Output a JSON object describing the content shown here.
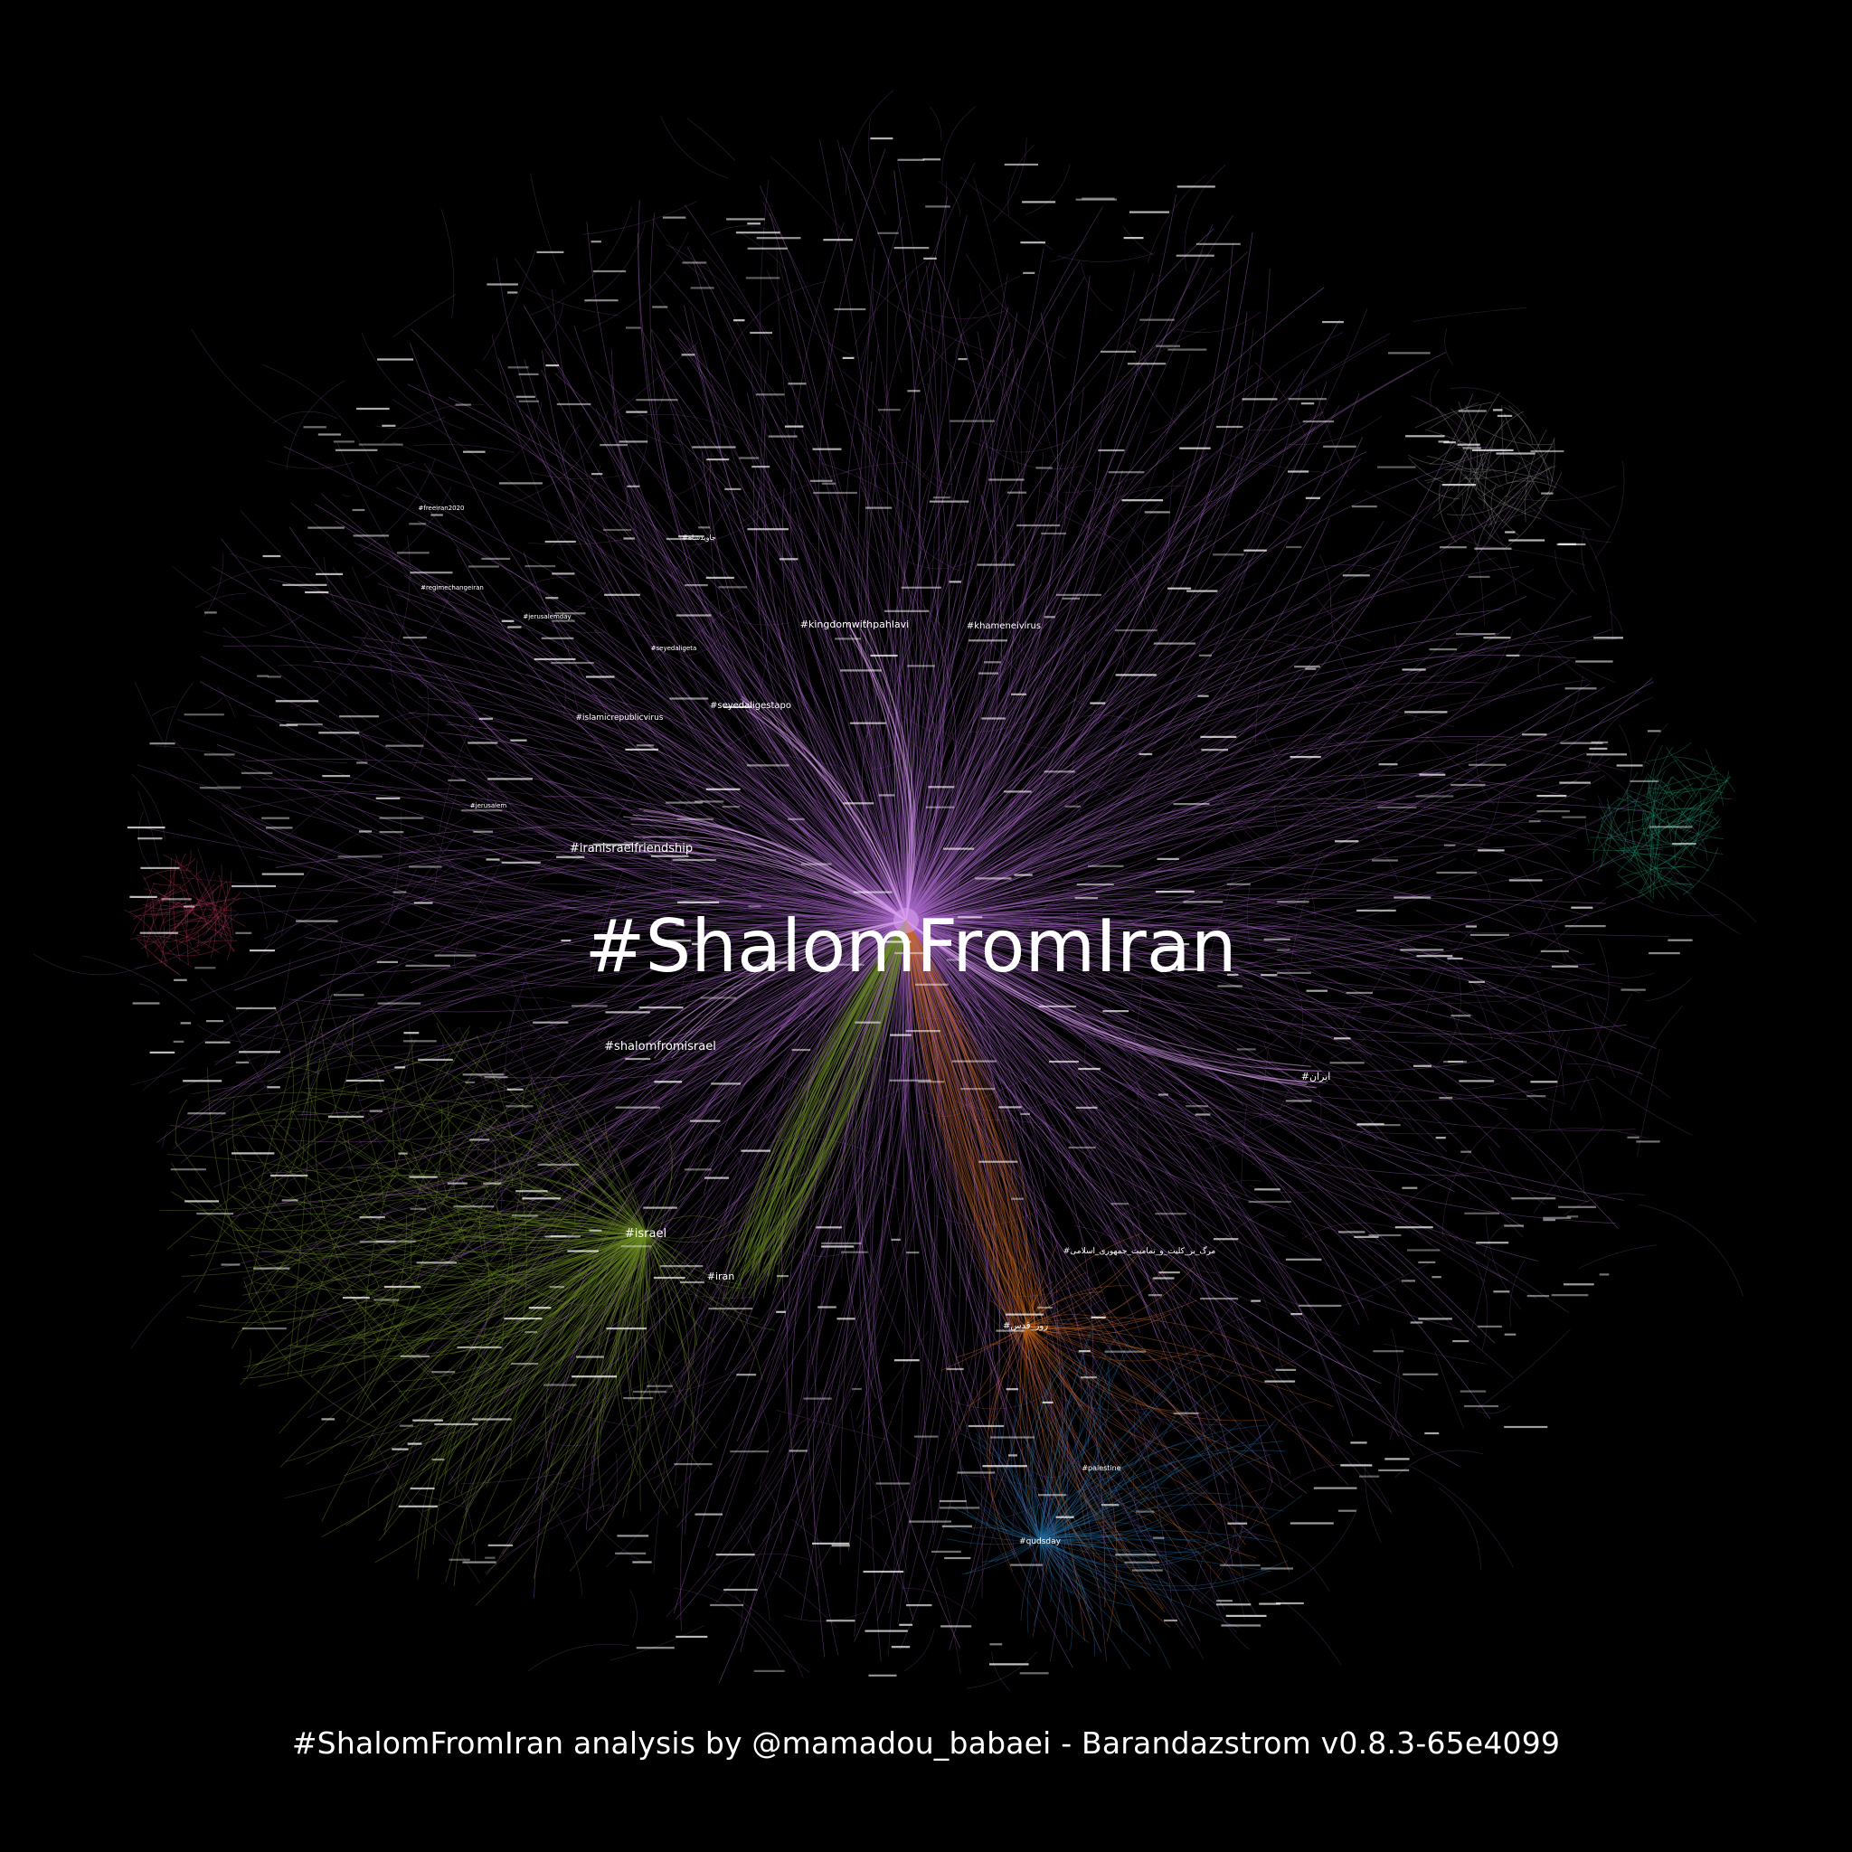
{
  "graph": {
    "title": "#ShalomFromIran",
    "center_label": "#ShalomFromIran",
    "colors": {
      "background": "#000000",
      "purple": "#a868c8",
      "purple_bright": "#d9a0ee",
      "green": "#6a8a24",
      "teal": "#1e8a6a",
      "red": "#a83050",
      "orange": "#c8661e",
      "blue": "#1e6aa0",
      "gray": "#8a8a8a",
      "label": "#ffffff"
    },
    "hubs": [
      {
        "label": "#iranisraelfriendship",
        "cluster": "purple"
      },
      {
        "label": "#shalomfromisrael",
        "cluster": "purple"
      },
      {
        "label": "#kingdomwithpahlavi",
        "cluster": "purple"
      },
      {
        "label": "#khameneivirus",
        "cluster": "purple"
      },
      {
        "label": "#seyedaligestapo",
        "cluster": "purple"
      },
      {
        "label": "#islamicrepublicvirus",
        "cluster": "purple"
      },
      {
        "label": "#seyedaligeta",
        "cluster": "purple"
      },
      {
        "label": "#jerusalemday",
        "cluster": "purple"
      },
      {
        "label": "#regimechangeiran",
        "cluster": "purple"
      },
      {
        "label": "#freeiran2020",
        "cluster": "purple"
      },
      {
        "label": "#jerusalem",
        "cluster": "purple"
      },
      {
        "label": "#israel",
        "cluster": "green"
      },
      {
        "label": "#iran",
        "cluster": "green"
      },
      {
        "label": "#palestine",
        "cluster": "blue"
      },
      {
        "label": "#qudsday",
        "cluster": "blue"
      },
      {
        "label": "#ایران",
        "cluster": "purple"
      },
      {
        "label": "#روز_قدس",
        "cluster": "orange"
      },
      {
        "label": "#مرگ_بر_کلیت_و_تمامیت_جمهوری_اسلامی",
        "cluster": "purple"
      },
      {
        "label": "#جاویدشاه",
        "cluster": "purple"
      }
    ]
  },
  "footer": "#ShalomFromIran analysis by @mamadou_babaei - Barandazstrom v0.8.3-65e4099"
}
